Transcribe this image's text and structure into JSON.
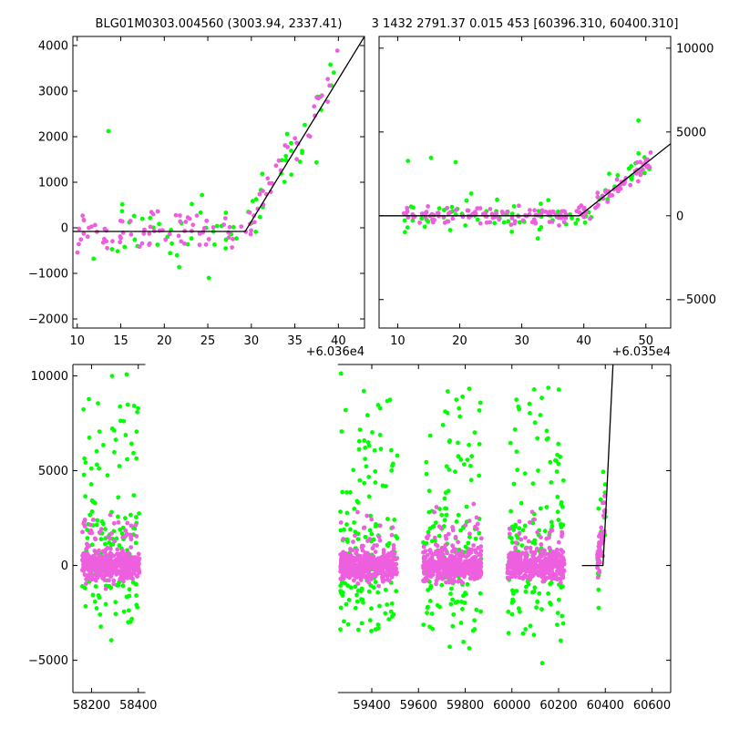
{
  "title": {
    "left": "BLG01M0303.004560 (3003.94, 2337.41)",
    "right": "3 1432 2791.37 0.015 453 [60396.310, 60400.310]"
  },
  "colors": {
    "series_a": "#00ff00",
    "series_b": "#ee5fdf",
    "model": "#000000",
    "axis": "#000000"
  },
  "chart_data": [
    {
      "id": "top_left",
      "type": "scatter",
      "xlim": [
        9.5,
        43
      ],
      "ylim": [
        -2200,
        4200
      ],
      "xticks": [
        10,
        15,
        20,
        25,
        30,
        35,
        40
      ],
      "xtick_labels": [
        "10",
        "15",
        "20",
        "25",
        "30",
        "35",
        "40"
      ],
      "yticks": [
        -2000,
        -1000,
        0,
        1000,
        2000,
        3000,
        4000
      ],
      "ytick_labels": [
        "−2000",
        "−1000",
        "0",
        "1000",
        "2000",
        "3000",
        "4000"
      ],
      "y_axis_side": "left",
      "offset_label": "+6.036e4",
      "model": {
        "x": [
          9.5,
          29.3,
          43
        ],
        "y": [
          -80,
          -80,
          4200
        ]
      },
      "series": [
        {
          "name": "green",
          "color": "#00ff00",
          "x0": 10,
          "x1": 40,
          "breakpoint": 29.3,
          "base": -80,
          "slope": 330,
          "scatter": 420,
          "n": 70
        },
        {
          "name": "pink",
          "color": "#ee5fdf",
          "x0": 10,
          "x1": 40,
          "breakpoint": 29.3,
          "base": -80,
          "slope": 330,
          "scatter": 300,
          "n": 110
        }
      ]
    },
    {
      "id": "top_right",
      "type": "scatter",
      "xlim": [
        7,
        54
      ],
      "ylim": [
        -6700,
        10700
      ],
      "xticks": [
        10,
        20,
        30,
        40,
        50
      ],
      "xtick_labels": [
        "10",
        "20",
        "30",
        "40",
        "50"
      ],
      "yticks": [
        -5000,
        0,
        5000,
        10000
      ],
      "ytick_labels": [
        "−5000",
        "0",
        "5000",
        "10000"
      ],
      "y_axis_side": "right",
      "offset_label": "+6.035e4",
      "model": {
        "x": [
          7,
          39.3,
          54
        ],
        "y": [
          0,
          0,
          4300
        ]
      },
      "series": [
        {
          "name": "green",
          "color": "#00ff00",
          "x0": 11,
          "x1": 51,
          "breakpoint": 39.3,
          "base": 0,
          "slope": 290,
          "scatter": 650,
          "n": 90
        },
        {
          "name": "pink",
          "color": "#ee5fdf",
          "x0": 11,
          "x1": 51,
          "breakpoint": 39.3,
          "base": 0,
          "slope": 290,
          "scatter": 380,
          "n": 170
        }
      ]
    },
    {
      "id": "bottom",
      "type": "scatter",
      "xlim": [
        58120,
        60680
      ],
      "ylim": [
        -6700,
        10600
      ],
      "xticks": [
        58200,
        58400,
        59400,
        59600,
        59800,
        60000,
        60200,
        60400,
        60600
      ],
      "xtick_labels": [
        "58200",
        "58400",
        "59400",
        "59600",
        "59800",
        "60000",
        "60200",
        "60400",
        "60600"
      ],
      "yticks": [
        -5000,
        0,
        5000,
        10000
      ],
      "ytick_labels": [
        "−5000",
        "0",
        "5000",
        "10000"
      ],
      "y_axis_side": "left",
      "axis_break": [
        58430,
        59255
      ],
      "seasons": [
        {
          "x0": 58160,
          "x1": 58405
        },
        {
          "x0": 59265,
          "x1": 59510
        },
        {
          "x0": 59620,
          "x1": 59870
        },
        {
          "x0": 59980,
          "x1": 60225
        },
        {
          "x0": 60365,
          "x1": 60402
        }
      ],
      "model": {
        "x": [
          60300,
          60390,
          60402,
          60433
        ],
        "y": [
          0,
          0,
          2800,
          10600
        ]
      },
      "series": [
        {
          "name": "green",
          "color": "#00ff00",
          "n_per_season": 170
        },
        {
          "name": "pink",
          "color": "#ee5fdf",
          "n_per_season": 420
        }
      ]
    }
  ]
}
